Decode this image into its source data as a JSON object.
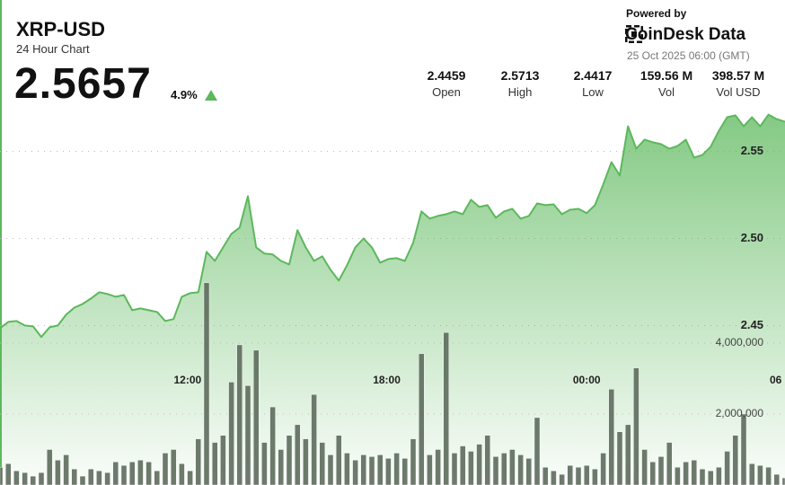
{
  "chart_data": {
    "type": "line",
    "title": "XRP-USD",
    "subtitle": "24 Hour Chart",
    "price": "2.5657",
    "change": "4.9%",
    "powered_by": "Powered by",
    "brand": "CoinDesk Data",
    "timestamp": "25 Oct 2025 06:00 (GMT)",
    "stats": [
      {
        "value": "2.4459",
        "label": "Open"
      },
      {
        "value": "2.5713",
        "label": "High"
      },
      {
        "value": "2.4417",
        "label": "Low"
      },
      {
        "value": "159.56 M",
        "label": "Vol"
      },
      {
        "value": "398.57 M",
        "label": "Vol USD"
      }
    ],
    "xlim": [
      0,
      95
    ],
    "xticks": [
      {
        "value": 22.7,
        "label": "12:00"
      },
      {
        "value": 46.8,
        "label": "18:00"
      },
      {
        "value": 71,
        "label": "00:00"
      },
      {
        "value": 94.6,
        "label": "06"
      }
    ],
    "ylim": [
      2.36,
      2.575
    ],
    "yticks": [
      2.45,
      {
        "value": 2.5,
        "label": "2.50"
      },
      2.55
    ],
    "y2lim": [
      0,
      10000000
    ],
    "y2ticks": [
      {
        "value": 2000000,
        "label": "2,000,000"
      },
      {
        "value": 4000000,
        "label": "4,000,000"
      }
    ],
    "grid": true,
    "series": [
      {
        "type": "line",
        "color": "#5cb85c",
        "values": [
          2.4485,
          2.4521,
          2.4526,
          2.45,
          2.4495,
          2.4434,
          2.449,
          2.45,
          2.4562,
          2.4603,
          2.4624,
          2.4655,
          2.4691,
          2.4681,
          2.4665,
          2.4675,
          2.4588,
          2.4598,
          2.4588,
          2.4578,
          2.4526,
          2.4537,
          2.4665,
          2.4686,
          2.4691,
          2.4923,
          2.4871,
          2.4949,
          2.5026,
          2.5062,
          2.5242,
          2.4949,
          2.4913,
          2.4908,
          2.4871,
          2.4851,
          2.5047,
          2.4949,
          2.4871,
          2.4897,
          2.482,
          2.4758,
          2.4846,
          2.4949,
          2.5,
          2.4949,
          2.4861,
          2.4882,
          2.4887,
          2.4871,
          2.4975,
          2.5155,
          2.5114,
          2.5129,
          2.5139,
          2.5155,
          2.5139,
          2.5222,
          2.5181,
          2.5191,
          2.5119,
          2.5155,
          2.517,
          2.5114,
          2.5129,
          2.5201,
          2.5191,
          2.5196,
          2.5139,
          2.5165,
          2.517,
          2.5145,
          2.5191,
          2.5309,
          2.5438,
          2.5361,
          2.5644,
          2.5515,
          2.5567,
          2.5552,
          2.5541,
          2.5515,
          2.5531,
          2.5567,
          2.5464,
          2.5479,
          2.5526,
          2.5618,
          2.5696,
          2.5706,
          2.5644,
          2.5696,
          2.5644,
          2.5711,
          2.5685,
          2.567
        ]
      },
      {
        "type": "bar",
        "axis": "y2",
        "color": "#5d6b5c",
        "values": [
          500000,
          600000,
          400000,
          350000,
          250000,
          350000,
          1000000,
          700000,
          850000,
          450000,
          250000,
          450000,
          400000,
          350000,
          650000,
          550000,
          650000,
          700000,
          650000,
          400000,
          900000,
          1000000,
          600000,
          400000,
          1300000,
          5700000,
          1200000,
          1400000,
          2900000,
          3950000,
          2800000,
          3800000,
          1200000,
          2200000,
          1000000,
          1400000,
          1700000,
          1300000,
          2550000,
          1200000,
          850000,
          1400000,
          900000,
          700000,
          850000,
          800000,
          850000,
          750000,
          900000,
          750000,
          1300000,
          3700000,
          850000,
          1000000,
          4300000,
          900000,
          1100000,
          950000,
          1150000,
          1400000,
          800000,
          900000,
          1000000,
          850000,
          750000,
          1900000,
          500000,
          400000,
          300000,
          550000,
          500000,
          550000,
          450000,
          900000,
          2700000,
          1500000,
          1700000,
          3300000,
          1000000,
          650000,
          800000,
          1200000,
          500000,
          650000,
          700000,
          450000,
          400000,
          500000,
          950000,
          1400000,
          2000000,
          600000,
          550000,
          500000,
          300000,
          200000
        ]
      }
    ]
  }
}
